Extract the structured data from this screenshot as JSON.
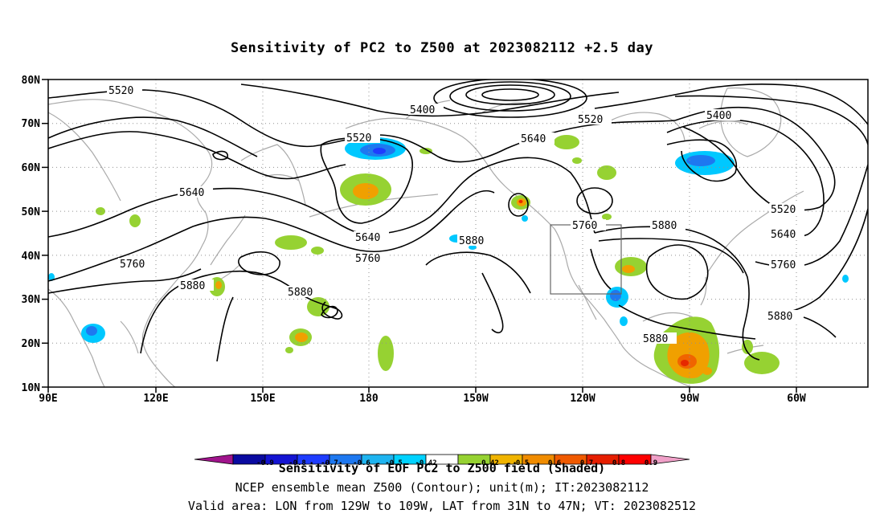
{
  "title": "Sensitivity of PC2 to Z500 at 2023082112 +2.5 day",
  "lat_labels": [
    "80N",
    "70N",
    "60N",
    "50N",
    "40N",
    "30N",
    "20N",
    "10N"
  ],
  "lon_labels": [
    "90E",
    "120E",
    "150E",
    "180",
    "150W",
    "120W",
    "90W",
    "60W"
  ],
  "contour_labels": [
    "5520",
    "5400",
    "5520",
    "5400",
    "5520",
    "5640",
    "5640",
    "5640",
    "5760",
    "5880",
    "5880",
    "5880",
    "5760",
    "5880",
    "5760",
    "5520",
    "5640",
    "5760",
    "5880",
    "5880"
  ],
  "colorbar": {
    "tick_labels": [
      "-0.9",
      "-0.8",
      "-0.7",
      "-0.6",
      "-0.5",
      "-0.42",
      "0.42",
      "0.5",
      "0.6",
      "0.7",
      "0.8",
      "0.9"
    ],
    "colors": [
      "#a0148c",
      "#0a0aa0",
      "#1414d2",
      "#1e3cff",
      "#1e78f0",
      "#1eb4f0",
      "#00d2ff",
      "#ffffff",
      "#96d232",
      "#f0b400",
      "#f08c00",
      "#f05a00",
      "#e61e00",
      "#ff0000",
      "#f0a0c8"
    ],
    "title": "Sensitivity of EOF PC2 to Z500 field (Shaded)"
  },
  "footer_line1": "NCEP ensemble mean Z500 (Contour); unit(m); IT:2023082112",
  "footer_line2": "Valid area: LON from 129W to 109W, LAT from 31N to 47N; VT: 2023082512",
  "valid_area": {
    "lon_min": -129,
    "lon_max": -109,
    "lat_min": 31,
    "lat_max": 47
  },
  "colors": {
    "green": "#96d232",
    "orange": "#f0a000",
    "red": "#e62800",
    "cyan": "#00c8ff",
    "blue": "#1e78f0",
    "coast": "#aaaaaa"
  }
}
